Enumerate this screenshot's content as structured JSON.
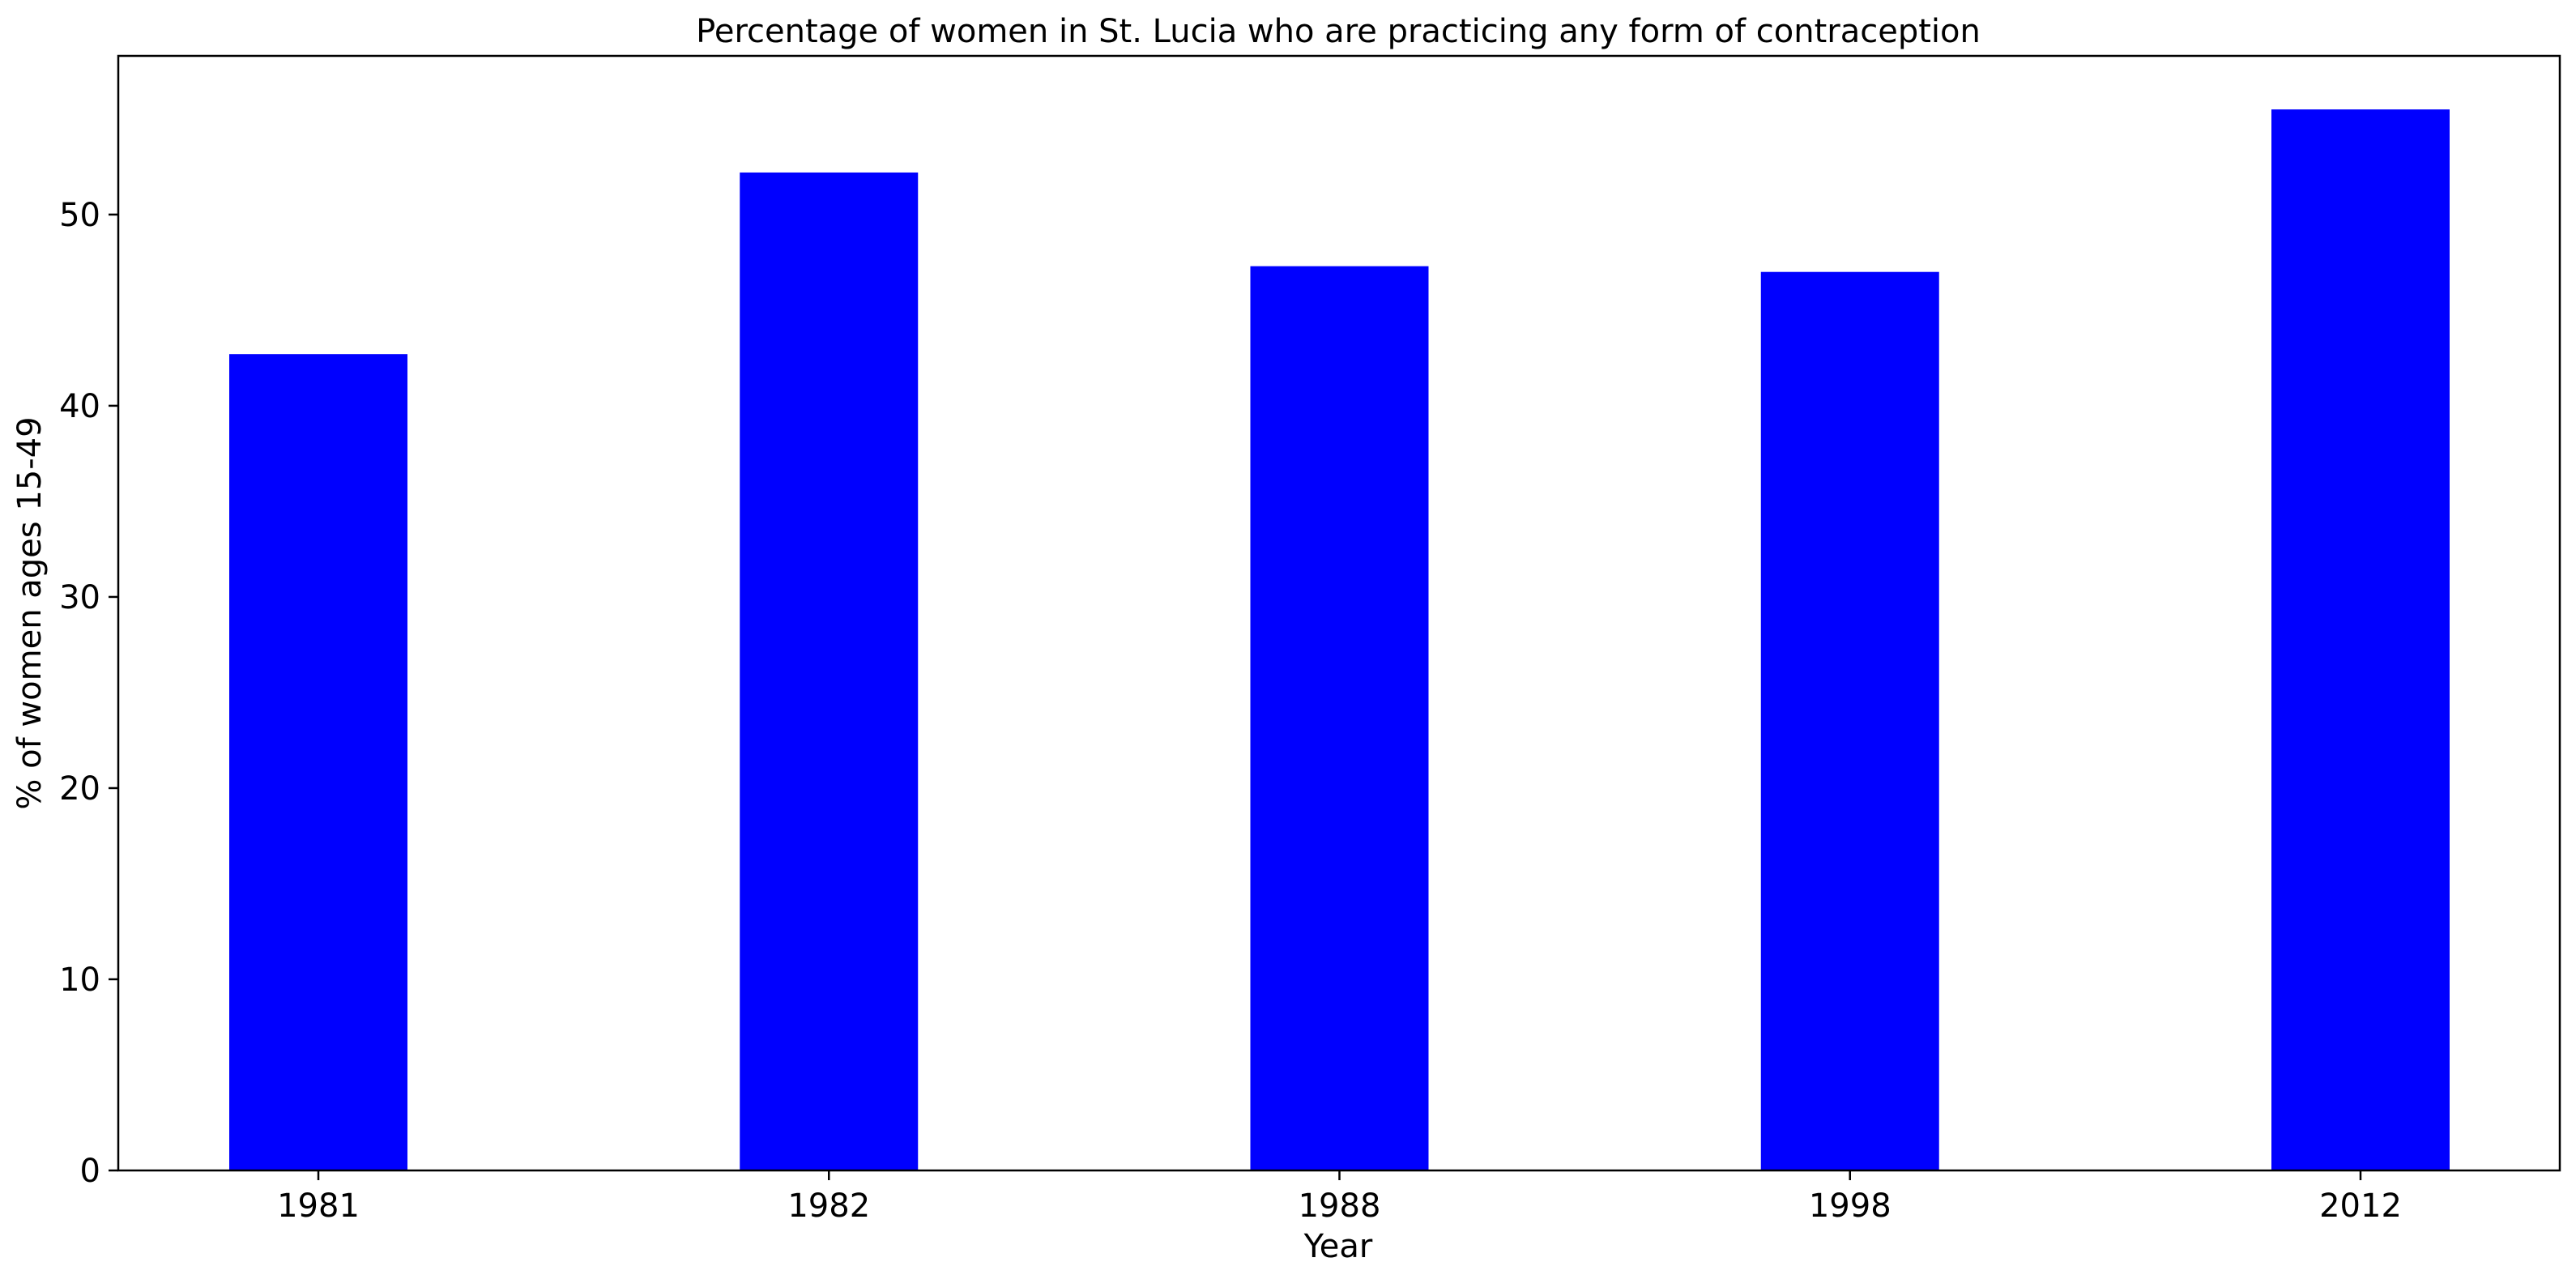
{
  "chart_data": {
    "type": "bar",
    "title": "Percentage of women in St. Lucia who are practicing any form of contraception",
    "xlabel": "Year",
    "ylabel": "% of women ages 15-49",
    "categories": [
      "1981",
      "1982",
      "1988",
      "1998",
      "2012"
    ],
    "values": [
      42.7,
      52.2,
      47.3,
      47.0,
      55.5
    ],
    "ylim": [
      0,
      58.3
    ],
    "yticks": [
      "0",
      "10",
      "20",
      "30",
      "40",
      "50"
    ],
    "grid": false,
    "legend": "none",
    "bar_color": "#0000ff"
  }
}
